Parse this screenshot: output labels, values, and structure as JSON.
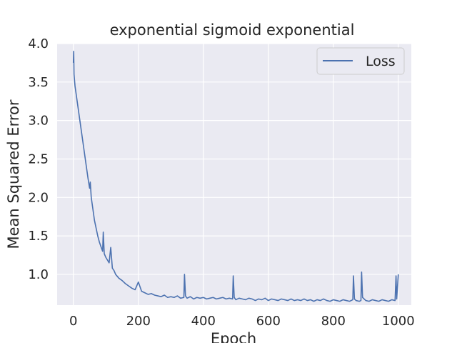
{
  "chart_data": {
    "type": "line",
    "title": "exponential sigmoid exponential",
    "xlabel": "Epoch",
    "ylabel": "Mean Squared Error",
    "xlim": [
      -50,
      1040
    ],
    "ylim": [
      0.6,
      4.0
    ],
    "xticks": [
      0,
      200,
      400,
      600,
      800,
      1000
    ],
    "yticks": [
      1.0,
      1.5,
      2.0,
      2.5,
      3.0,
      3.5,
      4.0
    ],
    "xtick_labels": [
      "0",
      "200",
      "400",
      "600",
      "800",
      "1000"
    ],
    "ytick_labels": [
      "1.0",
      "1.5",
      "2.0",
      "2.5",
      "3.0",
      "3.5",
      "4.0"
    ],
    "grid": true,
    "legend": {
      "position": "top-right",
      "entries": [
        "Loss"
      ]
    },
    "series": [
      {
        "name": "Loss",
        "color": "#4c72b0",
        "x": [
          0,
          1,
          2,
          5,
          10,
          15,
          20,
          25,
          30,
          35,
          40,
          45,
          50,
          52,
          55,
          60,
          65,
          70,
          75,
          80,
          85,
          90,
          92,
          95,
          100,
          110,
          115,
          120,
          125,
          130,
          140,
          150,
          160,
          170,
          180,
          190,
          200,
          210,
          220,
          230,
          240,
          250,
          260,
          270,
          280,
          290,
          300,
          310,
          320,
          330,
          340,
          342,
          345,
          350,
          360,
          370,
          380,
          390,
          400,
          410,
          420,
          430,
          440,
          450,
          460,
          470,
          480,
          490,
          492,
          495,
          500,
          510,
          520,
          530,
          540,
          550,
          560,
          570,
          580,
          590,
          600,
          610,
          620,
          630,
          640,
          650,
          660,
          670,
          680,
          690,
          700,
          710,
          720,
          730,
          740,
          750,
          760,
          770,
          780,
          790,
          800,
          810,
          820,
          830,
          840,
          850,
          860,
          862,
          865,
          870,
          880,
          885,
          887,
          890,
          900,
          910,
          920,
          930,
          940,
          950,
          960,
          970,
          980,
          990,
          993,
          995,
          1000
        ],
        "y": [
          3.75,
          3.9,
          3.6,
          3.45,
          3.3,
          3.15,
          3.0,
          2.85,
          2.7,
          2.55,
          2.4,
          2.25,
          2.12,
          2.2,
          2.0,
          1.85,
          1.7,
          1.6,
          1.5,
          1.42,
          1.36,
          1.3,
          1.55,
          1.27,
          1.22,
          1.15,
          1.35,
          1.08,
          1.05,
          1.0,
          0.95,
          0.92,
          0.88,
          0.85,
          0.82,
          0.8,
          0.9,
          0.78,
          0.76,
          0.74,
          0.75,
          0.73,
          0.72,
          0.71,
          0.73,
          0.7,
          0.71,
          0.7,
          0.72,
          0.69,
          0.7,
          1.0,
          0.72,
          0.69,
          0.71,
          0.68,
          0.7,
          0.69,
          0.7,
          0.68,
          0.69,
          0.7,
          0.68,
          0.69,
          0.7,
          0.68,
          0.69,
          0.68,
          0.98,
          0.7,
          0.67,
          0.69,
          0.68,
          0.67,
          0.69,
          0.68,
          0.66,
          0.68,
          0.67,
          0.69,
          0.66,
          0.68,
          0.67,
          0.66,
          0.68,
          0.67,
          0.66,
          0.68,
          0.66,
          0.67,
          0.66,
          0.68,
          0.66,
          0.67,
          0.65,
          0.67,
          0.66,
          0.68,
          0.66,
          0.65,
          0.67,
          0.66,
          0.65,
          0.67,
          0.66,
          0.65,
          0.67,
          0.98,
          0.68,
          0.66,
          0.65,
          0.66,
          1.03,
          0.7,
          0.66,
          0.65,
          0.67,
          0.66,
          0.65,
          0.67,
          0.66,
          0.65,
          0.67,
          0.66,
          0.98,
          0.68,
          1.0
        ]
      }
    ]
  }
}
